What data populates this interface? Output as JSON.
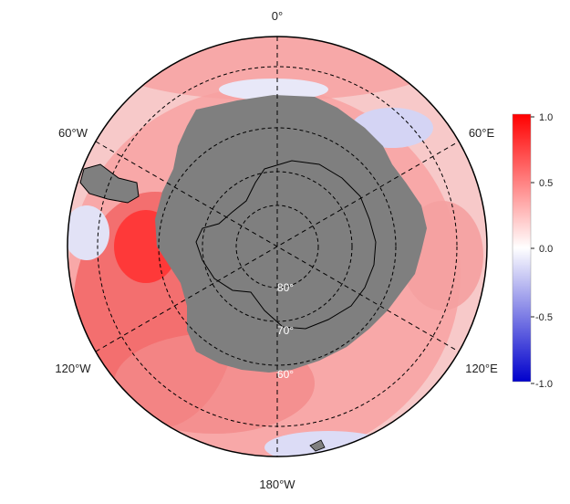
{
  "map": {
    "projection": "south polar stereographic",
    "longitude_labels": {
      "top": "0°",
      "upper_left": "60°W",
      "upper_right": "60°E",
      "lower_left": "120°W",
      "lower_right": "120°E",
      "bottom": "180°W"
    },
    "latitude_labels": [
      "60°",
      "70°",
      "80°"
    ],
    "land_color": "#7f7f7f",
    "coastline_color": "#000000",
    "gridline_style": "dashed"
  },
  "colorbar": {
    "ticks": [
      "1.0",
      "0.5",
      "0.0",
      "-0.5",
      "-1.0"
    ],
    "min": -1.0,
    "max": 1.0,
    "color_max": "#ff0000",
    "color_mid": "#ffffff",
    "color_min": "#0000cc"
  }
}
